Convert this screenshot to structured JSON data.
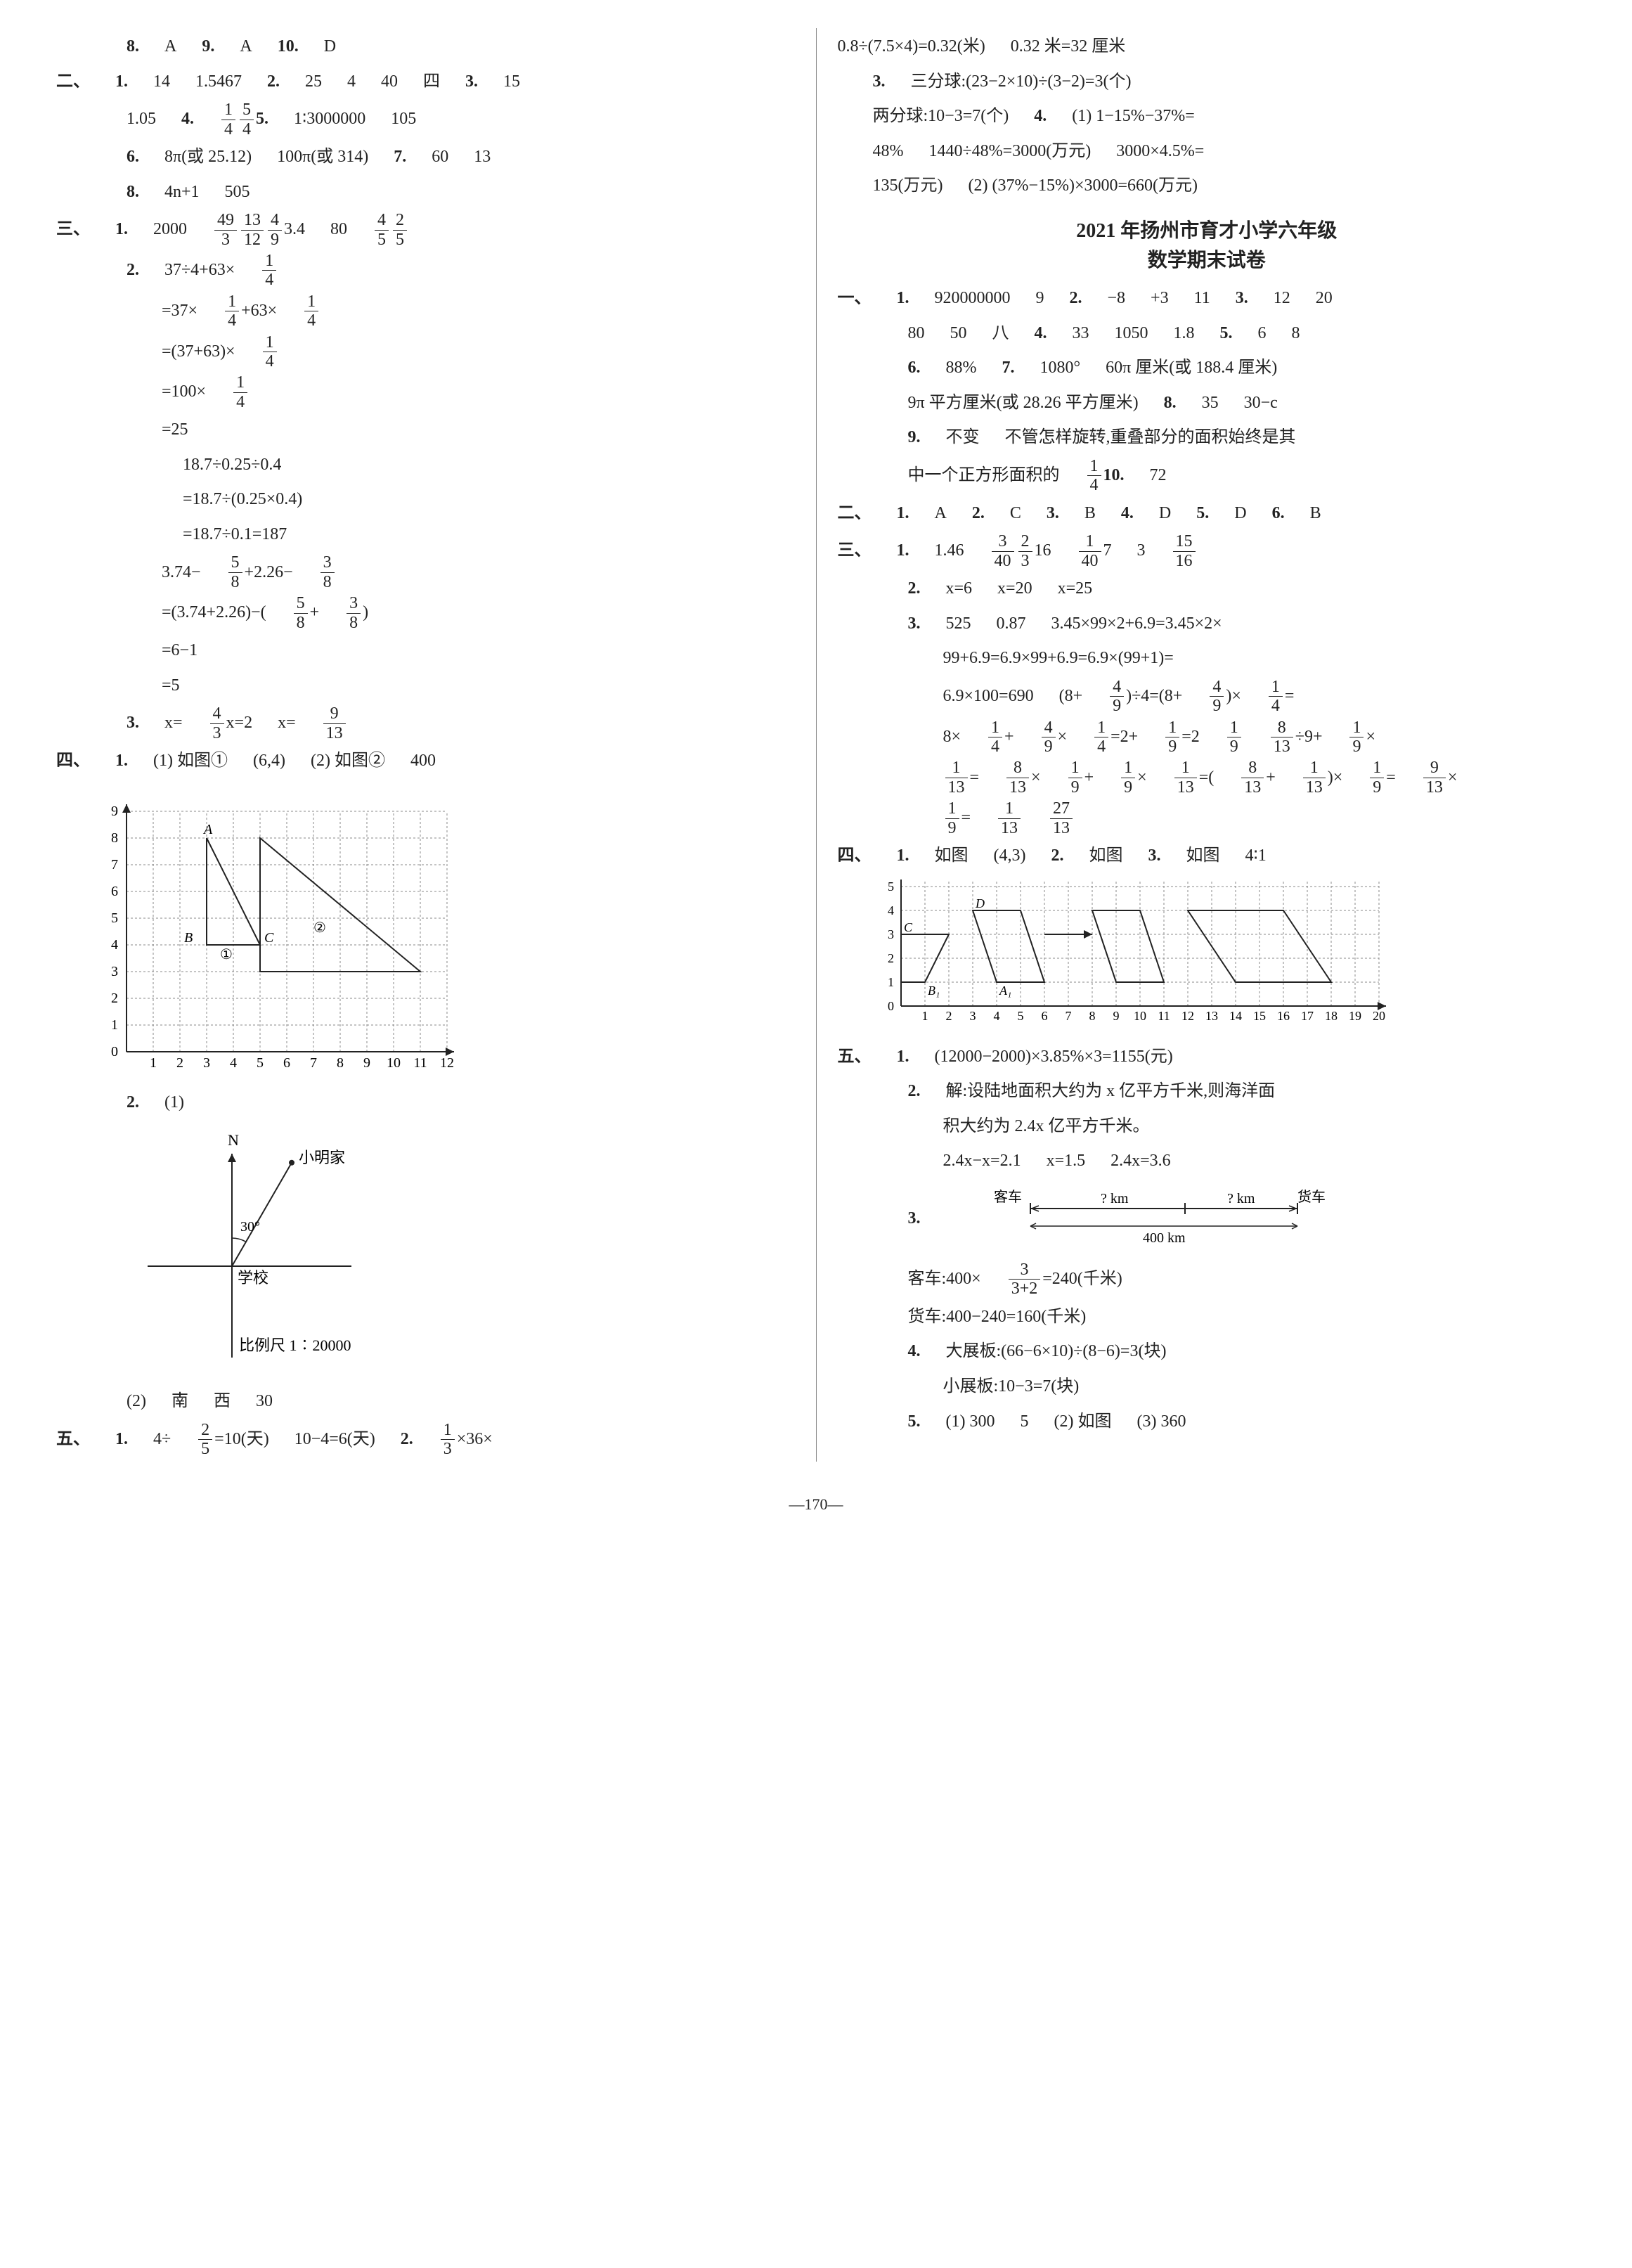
{
  "left": {
    "top_line": [
      "8.",
      "A",
      "9.",
      "A",
      "10.",
      "D"
    ],
    "sec2": {
      "l1": [
        "二、",
        "1.",
        "14",
        "1.5467",
        "2.",
        "25",
        "4",
        "40",
        "四",
        "3.",
        "15"
      ],
      "l2": [
        "1.05",
        "4.",
        {
          "frac": [
            "1",
            "4"
          ]
        },
        {
          "frac": [
            "5",
            "4"
          ]
        },
        "5.",
        "1∶3000000",
        "105"
      ],
      "l3": [
        "6.",
        "8π(或 25.12)",
        "100π(或 314)",
        "7.",
        "60",
        "13"
      ],
      "l4": [
        "8.",
        "4n+1",
        "505"
      ]
    },
    "sec3": {
      "l1": [
        "三、",
        "1.",
        "2000",
        {
          "frac": [
            "49",
            "3"
          ]
        },
        {
          "frac": [
            "13",
            "12"
          ]
        },
        {
          "frac": [
            "4",
            "9"
          ]
        },
        "3.4",
        "80",
        {
          "frac": [
            "4",
            "5"
          ]
        },
        {
          "frac": [
            "2",
            "5"
          ]
        }
      ],
      "q2_lines": [
        [
          "2.",
          "37÷4+63×",
          {
            "frac": [
              "1",
              "4"
            ]
          }
        ],
        [
          "=37×",
          {
            "frac": [
              "1",
              "4"
            ]
          },
          "+63×",
          {
            "frac": [
              "1",
              "4"
            ]
          }
        ],
        [
          "=(37+63)×",
          {
            "frac": [
              "1",
              "4"
            ]
          }
        ],
        [
          "=100×",
          {
            "frac": [
              "1",
              "4"
            ]
          }
        ],
        [
          "=25"
        ],
        [
          "18.7÷0.25÷0.4"
        ],
        [
          "=18.7÷(0.25×0.4)"
        ],
        [
          "=18.7÷0.1=187"
        ],
        [
          "3.74−",
          {
            "frac": [
              "5",
              "8"
            ]
          },
          "+2.26−",
          {
            "frac": [
              "3",
              "8"
            ]
          }
        ],
        [
          "=(3.74+2.26)−(",
          {
            "frac": [
              "5",
              "8"
            ]
          },
          "+",
          {
            "frac": [
              "3",
              "8"
            ]
          },
          ")"
        ],
        [
          "=6−1"
        ],
        [
          "=5"
        ]
      ],
      "q3": [
        "3.",
        "x=",
        {
          "frac": [
            "4",
            "3"
          ]
        },
        "x=2",
        "x=",
        {
          "frac": [
            "9",
            "13"
          ]
        }
      ]
    },
    "sec4": {
      "l1": [
        "四、",
        "1.",
        "(1) 如图①",
        "(6,4)",
        "(2) 如图②",
        "400"
      ],
      "grid": {
        "x_range": 12,
        "y_range": 9,
        "tri1": {
          "pts": [
            [
              3,
              8
            ],
            [
              3,
              4
            ],
            [
              5,
              4
            ]
          ],
          "label_A": "A",
          "label_B": "B",
          "label_C": "C",
          "circ": "①"
        },
        "tri2": {
          "pts": [
            [
              5,
              8
            ],
            [
              5,
              3
            ],
            [
              11,
              3
            ]
          ],
          "circ": "②"
        },
        "axis_color": "#222",
        "grid_color": "#888"
      },
      "q2": {
        "l1": [
          "2.",
          "(1)"
        ],
        "labels": {
          "N": "N",
          "home": "小明家",
          "school": "学校",
          "angle": "30°",
          "scale": "比例尺 1∶20000"
        },
        "l2": [
          "(2)",
          "南",
          "西",
          "30"
        ]
      }
    },
    "sec5": {
      "l1": [
        "五、",
        "1.",
        "4÷",
        {
          "frac": [
            "2",
            "5"
          ]
        },
        "=10(天)",
        "10−4=6(天)",
        "2.",
        {
          "frac": [
            "1",
            "3"
          ]
        },
        "×36×"
      ]
    }
  },
  "right": {
    "cont": [
      [
        "0.8÷(7.5×4)=0.32(米)",
        "0.32 米=32 厘米"
      ],
      [
        "3.",
        "三分球:(23−2×10)÷(3−2)=3(个)"
      ],
      [
        "两分球:10−3=7(个)",
        "4.",
        "(1) 1−15%−37%="
      ],
      [
        "48%",
        "1440÷48%=3000(万元)",
        "3000×4.5%="
      ],
      [
        "135(万元)",
        "(2) (37%−15%)×3000=660(万元)"
      ]
    ],
    "title": [
      "2021 年扬州市育才小学六年级",
      "数学期末试卷"
    ],
    "sec1": [
      [
        "一、",
        "1.",
        "920000000",
        "9",
        "2.",
        "−8",
        "+3",
        "11",
        "3.",
        "12",
        "20"
      ],
      [
        "80",
        "50",
        "八",
        "4.",
        "33",
        "1050",
        "1.8",
        "5.",
        "6",
        "8"
      ],
      [
        "6.",
        "88%",
        "7.",
        "1080°",
        "60π 厘米(或 188.4 厘米)"
      ],
      [
        "9π 平方厘米(或 28.26 平方厘米)",
        "8.",
        "35",
        "30−c"
      ],
      [
        "9.",
        "不变",
        "不管怎样旋转,重叠部分的面积始终是其"
      ],
      [
        "中一个正方形面积的",
        {
          "frac": [
            "1",
            "4"
          ]
        },
        "10.",
        "72"
      ]
    ],
    "sec2": [
      "二、",
      "1.",
      "A",
      "2.",
      "C",
      "3.",
      "B",
      "4.",
      "D",
      "5.",
      "D",
      "6.",
      "B"
    ],
    "sec3": {
      "l1": [
        "三、",
        "1.",
        "1.46",
        {
          "frac": [
            "3",
            "40"
          ]
        },
        {
          "frac": [
            "2",
            "3"
          ]
        },
        "16",
        {
          "frac": [
            "1",
            "40"
          ]
        },
        "7",
        "3",
        {
          "frac": [
            "15",
            "16"
          ]
        }
      ],
      "l2": [
        "2.",
        "x=6",
        "x=20",
        "x=25"
      ],
      "l3": [
        "3.",
        "525",
        "0.87",
        "3.45×99×2+6.9=3.45×2×"
      ],
      "l3b": [
        "99+6.9=6.9×99+6.9=6.9×(99+1)="
      ],
      "l3c": [
        "6.9×100=690",
        "(8+",
        {
          "frac": [
            "4",
            "9"
          ]
        },
        ")÷4=(8+",
        {
          "frac": [
            "4",
            "9"
          ]
        },
        ")×",
        {
          "frac": [
            "1",
            "4"
          ]
        },
        "="
      ],
      "l3d": [
        "8×",
        {
          "frac": [
            "1",
            "4"
          ]
        },
        "+",
        {
          "frac": [
            "4",
            "9"
          ]
        },
        "×",
        {
          "frac": [
            "1",
            "4"
          ]
        },
        "=2+",
        {
          "frac": [
            "1",
            "9"
          ]
        },
        "=2 ",
        {
          "frac": [
            "1",
            "9"
          ]
        },
        {
          "sp": "2"
        },
        {
          "frac": [
            "8",
            "13"
          ]
        },
        "÷9+",
        {
          "frac": [
            "1",
            "9"
          ]
        },
        "×"
      ],
      "l3e": [
        {
          "frac": [
            "1",
            "13"
          ]
        },
        "=",
        {
          "frac": [
            "8",
            "13"
          ]
        },
        "×",
        {
          "frac": [
            "1",
            "9"
          ]
        },
        "+",
        {
          "frac": [
            "1",
            "9"
          ]
        },
        "×",
        {
          "frac": [
            "1",
            "13"
          ]
        },
        "=(",
        {
          "frac": [
            "8",
            "13"
          ]
        },
        "+",
        {
          "frac": [
            "1",
            "13"
          ]
        },
        ")×",
        {
          "frac": [
            "1",
            "9"
          ]
        },
        "=",
        {
          "frac": [
            "9",
            "13"
          ]
        },
        "×"
      ],
      "l3f": [
        {
          "frac": [
            "1",
            "9"
          ]
        },
        "=",
        {
          "frac": [
            "1",
            "13"
          ]
        },
        {
          "sp": "2"
        },
        {
          "frac": [
            "27",
            "13"
          ]
        }
      ]
    },
    "sec4": {
      "l1": [
        "四、",
        "1.",
        "如图",
        "(4,3)",
        "2.",
        "如图",
        "3.",
        "如图",
        "4∶1"
      ],
      "grid": {
        "x_range": 20,
        "y_range": 6,
        "shapes": [
          {
            "pts": [
              [
                0,
                3
              ],
              [
                2,
                3
              ],
              [
                1,
                1
              ],
              [
                0,
                1
              ]
            ]
          },
          {
            "pts": [
              [
                3,
                4
              ],
              [
                5,
                4
              ],
              [
                6,
                1
              ],
              [
                4,
                1
              ]
            ]
          },
          {
            "pts": [
              [
                8,
                4
              ],
              [
                10,
                4
              ],
              [
                11,
                1
              ],
              [
                9,
                1
              ]
            ]
          },
          {
            "pts": [
              [
                12,
                4
              ],
              [
                16,
                4
              ],
              [
                18,
                1
              ],
              [
                14,
                1
              ]
            ]
          }
        ],
        "arrow": [
          [
            6,
            3
          ],
          [
            8,
            3
          ]
        ],
        "labels": {
          "A": "A",
          "A1": "A₁",
          "B": "B",
          "B1": "B₁",
          "C": "C",
          "D": "D"
        }
      }
    },
    "sec5": {
      "l1": [
        "五、",
        "1.",
        "(12000−2000)×3.85%×3=1155(元)"
      ],
      "l2": [
        "2.",
        "解:设陆地面积大约为 x 亿平方千米,则海洋面"
      ],
      "l2b": [
        "积大约为 2.4x 亿平方千米。"
      ],
      "l2c": [
        "2.4x−x=2.1",
        "x=1.5",
        "2.4x=3.6"
      ],
      "l3": [
        "3.",
        "客车",
        "? km",
        "? km",
        "货车"
      ],
      "l3_dist": "400 km",
      "l3b": [
        "客车:400×",
        {
          "frac": [
            "3",
            "3+2"
          ]
        },
        "=240(千米)"
      ],
      "l3c": [
        "货车:400−240=160(千米)"
      ],
      "l4": [
        "4.",
        "大展板:(66−6×10)÷(8−6)=3(块)"
      ],
      "l4b": [
        "小展板:10−3=7(块)"
      ],
      "l5": [
        "5.",
        "(1) 300",
        "5",
        "(2) 如图",
        "(3) 360"
      ]
    }
  },
  "page_number": "—170—"
}
